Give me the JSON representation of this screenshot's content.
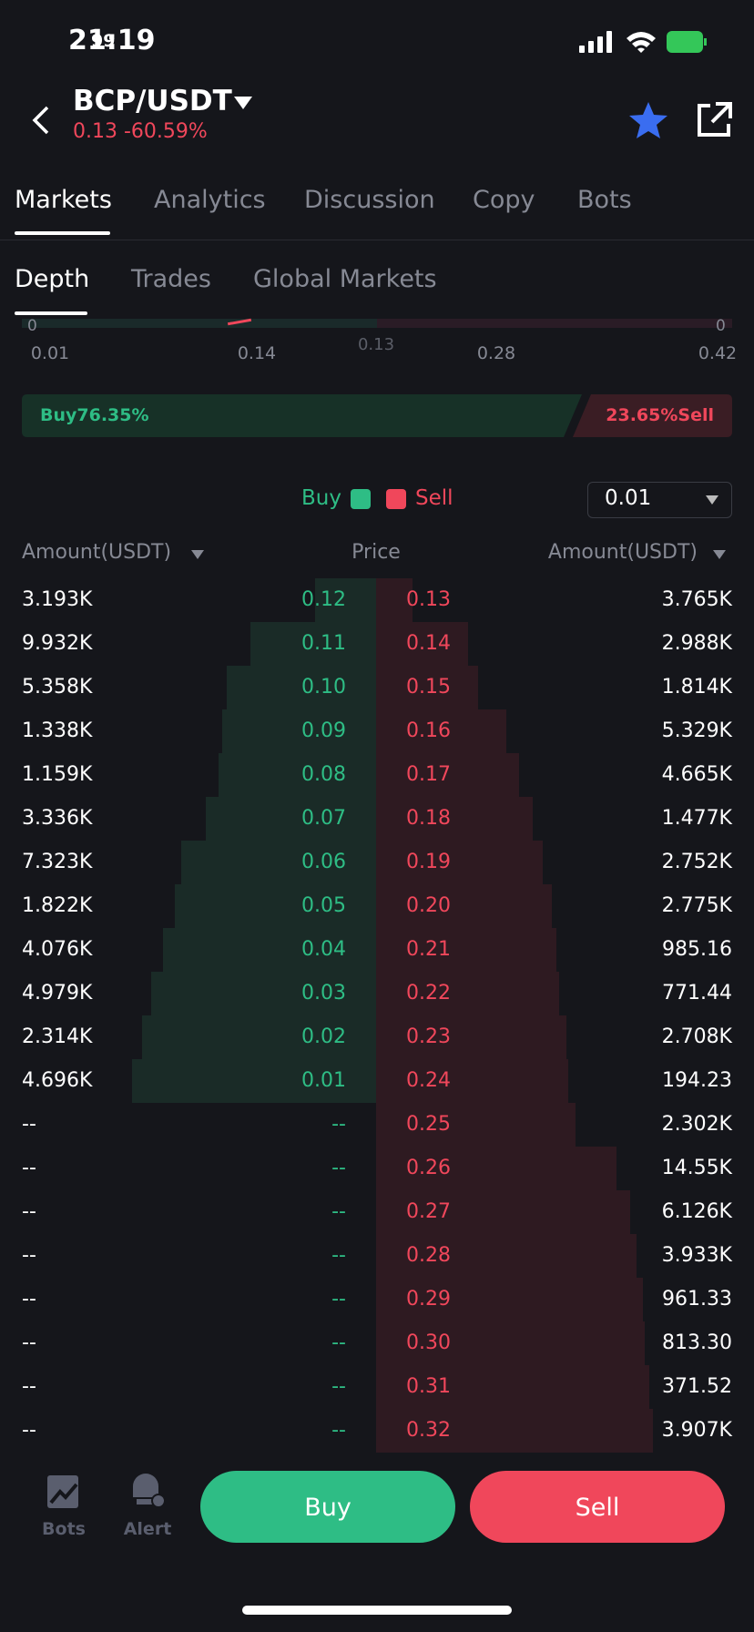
{
  "status_bar": {
    "time": "21:19",
    "battery": "99"
  },
  "header": {
    "pair": "BCP/USDT",
    "price": "0.13",
    "change": "-60.59%"
  },
  "tabs": [
    "Markets",
    "Analytics",
    "Discussion",
    "Copy",
    "Bots"
  ],
  "sub_tabs": [
    "Depth",
    "Trades",
    "Global Markets"
  ],
  "depth_chart": {
    "y_left": "0",
    "y_right": "0",
    "x_labels": [
      "0.01",
      "0.14",
      "0.28",
      "0.42"
    ],
    "mid_price": "0.13"
  },
  "ratio": {
    "buy": "Buy76.35%",
    "sell": "23.65%Sell"
  },
  "legend": {
    "buy": "Buy",
    "sell": "Sell",
    "precision": "0.01"
  },
  "columns": [
    "Amount(USDT)",
    "Price",
    "Amount(USDT)"
  ],
  "order_book": {
    "rows": [
      [
        "3.193K",
        "0.12",
        "0.13",
        "3.765K"
      ],
      [
        "9.932K",
        "0.11",
        "0.14",
        "2.988K"
      ],
      [
        "5.358K",
        "0.10",
        "0.15",
        "1.814K"
      ],
      [
        "1.338K",
        "0.09",
        "0.16",
        "5.329K"
      ],
      [
        "1.159K",
        "0.08",
        "0.17",
        "4.665K"
      ],
      [
        "3.336K",
        "0.07",
        "0.18",
        "1.477K"
      ],
      [
        "7.323K",
        "0.06",
        "0.19",
        "2.752K"
      ],
      [
        "1.822K",
        "0.05",
        "0.20",
        "2.775K"
      ],
      [
        "4.076K",
        "0.04",
        "0.21",
        "985.16"
      ],
      [
        "4.979K",
        "0.03",
        "0.22",
        "771.44"
      ],
      [
        "2.314K",
        "0.02",
        "0.23",
        "2.708K"
      ],
      [
        "4.696K",
        "0.01",
        "0.24",
        "194.23"
      ],
      [
        "--",
        "--",
        "0.25",
        "2.302K"
      ],
      [
        "--",
        "--",
        "0.26",
        "14.55K"
      ],
      [
        "--",
        "--",
        "0.27",
        "6.126K"
      ],
      [
        "--",
        "--",
        "0.28",
        "3.933K"
      ],
      [
        "--",
        "--",
        "0.29",
        "961.33"
      ],
      [
        "--",
        "--",
        "0.30",
        "813.30"
      ],
      [
        "--",
        "--",
        "0.31",
        "371.52"
      ],
      [
        "--",
        "--",
        "0.32",
        "3.907K"
      ]
    ]
  },
  "bottom_bar": {
    "bots": "Bots",
    "alert": "Alert",
    "buy": "Buy",
    "sell": "Sell"
  }
}
